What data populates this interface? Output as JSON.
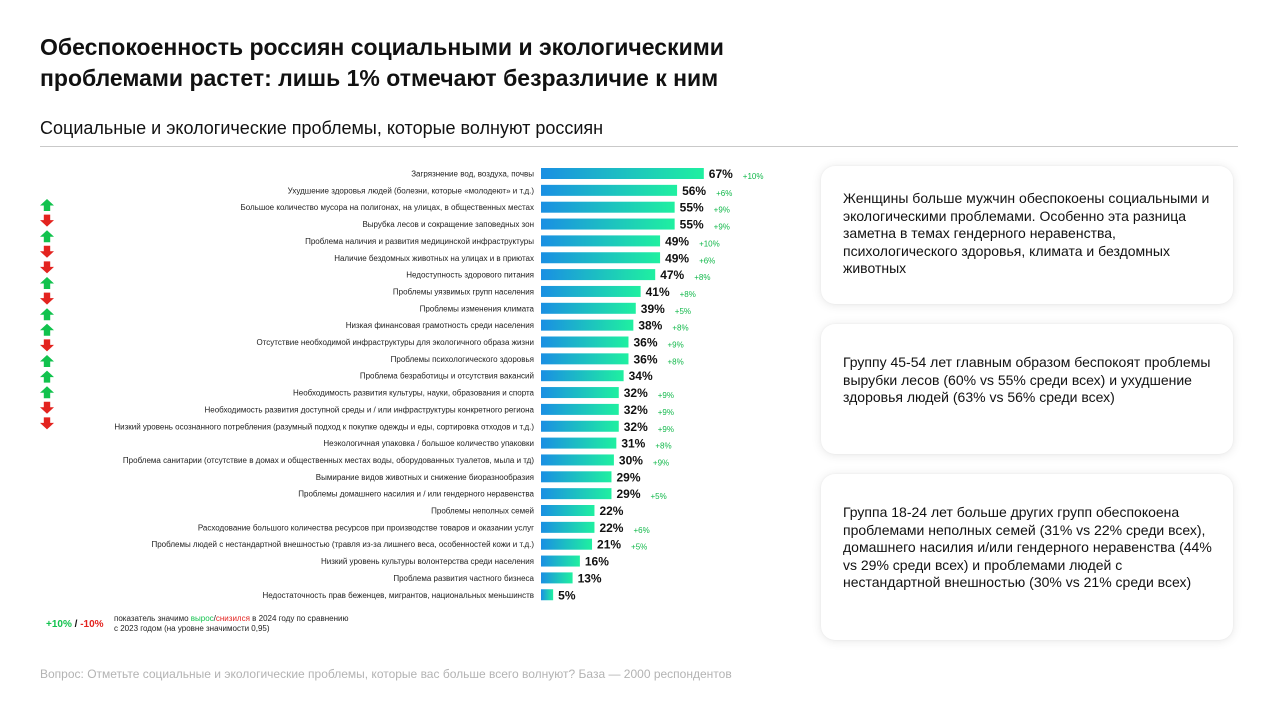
{
  "title": "Обеспокоенность россиян социальными и экологическими проблемами растет:  лишь 1% отмечают безразличие к ним",
  "subtitle": "Социальные и экологические проблемы, которые волнуют россиян",
  "colors": {
    "bar_gradient_start": "#1a8fe3",
    "bar_gradient_end": "#1ff0a0",
    "increase": "#11c24d",
    "decrease": "#e3231f"
  },
  "chart_data": {
    "type": "bar",
    "orientation": "horizontal",
    "unit": "%",
    "categories": [
      "Загрязнение вод, воздуха, почвы",
      "Ухудшение здоровья людей (болезни, которые «молодеют» и т.д.)",
      "Большое количество мусора на полигонах, на улицах, в общественных местах",
      "Вырубка лесов и сокращение заповедных зон",
      "Проблема наличия и развития медицинской инфраструктуры",
      "Наличие бездомных животных на улицах и в приютах",
      "Недоступность здорового питания",
      "Проблемы уязвимых групп населения",
      "Проблемы изменения климата",
      "Низкая финансовая грамотность среди населения",
      "Отсутствие необходимой инфраструктуры для экологичного образа жизни",
      "Проблемы психологического здоровья",
      "Проблема безработицы и отсутствия вакансий",
      "Необходимость развития культуры, науки, образования и спорта",
      "Необходимость развития доступной среды и / или инфраструктуры конкретного региона",
      "Низкий уровень осознанного потребления (разумный подход к покупке одежды и еды, сортировка отходов и т.д.)",
      "Неэкологичная упаковка / большое количество упаковки",
      "Проблема санитарии (отсутствие в домах и общественных местах воды, оборудованных туалетов, мыла и тд)",
      "Вымирание видов животных и снижение биоразнообразия",
      "Проблемы домашнего насилия и / или гендерного неравенства",
      "Проблемы неполных семей",
      "Расходование большого количества ресурсов при производстве товаров и оказании услуг",
      "Проблемы людей с нестандартной внешностью (травля из-за лишнего веса, особенностей кожи и т.д.)",
      "Низкий уровень культуры волонтерства среди населения",
      "Проблема развития частного бизнеса",
      "Недостаточность прав беженцев, мигрантов, национальных меньшинств"
    ],
    "values": [
      67,
      56,
      55,
      55,
      49,
      49,
      47,
      41,
      39,
      38,
      36,
      36,
      34,
      32,
      32,
      32,
      31,
      30,
      29,
      29,
      22,
      22,
      21,
      16,
      13,
      5
    ],
    "value_labels": [
      "67%",
      "56%",
      "55%",
      "55%",
      "49%",
      "49%",
      "47%",
      "41%",
      "39%",
      "38%",
      "36%",
      "36%",
      "34%",
      "32%",
      "32%",
      "32%",
      "31%",
      "30%",
      "29%",
      "29%",
      "22%",
      "22%",
      "21%",
      "16%",
      "13%",
      "5%"
    ],
    "change_vs_2023": [
      "+10%",
      "+6%",
      "+9%",
      "+9%",
      "+10%",
      "+6%",
      "+8%",
      "+8%",
      "+5%",
      "+8%",
      "+9%",
      "+8%",
      "",
      "+9%",
      "+9%",
      "+9%",
      "+8%",
      "+9%",
      "",
      "+5%",
      "",
      "+6%",
      "+5%",
      "",
      "",
      ""
    ],
    "arrows": [
      "up",
      "down",
      "up",
      "down",
      "down",
      "up",
      "down",
      "up",
      "up",
      "down",
      "up",
      "up",
      "up",
      "down",
      "down"
    ],
    "xlim": [
      0,
      100
    ],
    "legend_key": {
      "up": "+10%",
      "separator": " / ",
      "down": "-10%"
    },
    "legend_text": {
      "before": "показатель значимо ",
      "up_word": "вырос",
      "slash": "/",
      "down_word": "снизился",
      "after": " в 2024 году по сравнению с 2023 годом (на уровне значимости 0,95)"
    }
  },
  "cards": [
    {
      "text": "Женщины больше мужчин обеспокоены социальными и экологическими проблемами. Особенно эта разница заметна в темах гендерного неравенства, психологического здоровья, климата и бездомных животных"
    },
    {
      "text": "Группу 45-54 лет главным образом беспокоят проблемы вырубки лесов (60% vs 55% среди всех) и ухудшение здоровья людей (63% vs 56% среди всех)"
    },
    {
      "text": "Группа 18-24 лет больше других групп обеспокоена проблемами неполных семей (31% vs 22% среди всех), домашнего насилия и/или гендерного неравенства (44% vs 29% среди всех) и проблемами людей с нестандартной внешностью (30% vs 21% среди всех)"
    }
  ],
  "footnote": "Вопрос: Отметьте социальные и экологические проблемы, которые вас больше всего волнуют? База — 2000 респондентов"
}
